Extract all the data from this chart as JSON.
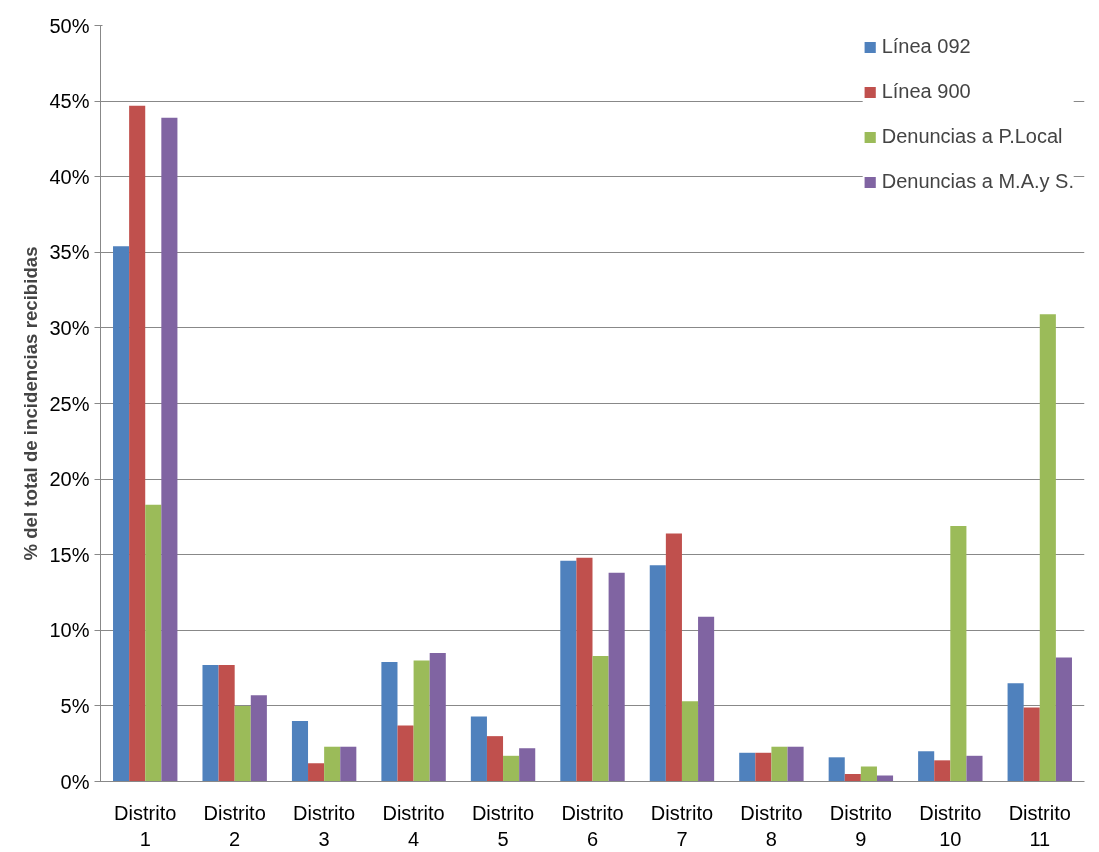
{
  "chart_data": {
    "type": "bar",
    "ylabel": "% del total de incidencias recibidas",
    "categories": [
      "Distrito 1",
      "Distrito 2",
      "Distrito 3",
      "Distrito 4",
      "Distrito 5",
      "Distrito 6",
      "Distrito 7",
      "Distrito 8",
      "Distrito 9",
      "Distrito 10",
      "Distrito 11"
    ],
    "series": [
      {
        "name": "Línea 092",
        "color": "#4f81bd",
        "values": [
          35.4,
          7.7,
          4.0,
          7.9,
          4.3,
          14.6,
          14.3,
          1.9,
          1.6,
          2.0,
          6.5
        ]
      },
      {
        "name": "Línea 900",
        "color": "#c0504d",
        "values": [
          44.7,
          7.7,
          1.2,
          3.7,
          3.0,
          14.8,
          16.4,
          1.9,
          0.5,
          1.4,
          4.9
        ]
      },
      {
        "name": "Denuncias a P.Local",
        "color": "#9bbb59",
        "values": [
          18.3,
          5.0,
          2.3,
          8.0,
          1.7,
          8.3,
          5.3,
          2.3,
          1.0,
          16.9,
          30.9
        ]
      },
      {
        "name": "Denuncias a M.A.y S.",
        "color": "#8064a2",
        "values": [
          43.9,
          5.7,
          2.3,
          8.5,
          2.2,
          13.8,
          10.9,
          2.3,
          0.4,
          1.7,
          8.2
        ]
      }
    ],
    "ylim": [
      0,
      50
    ],
    "yticks": [
      {
        "value": 0,
        "label": "0%"
      },
      {
        "value": 5,
        "label": "5%"
      },
      {
        "value": 10,
        "label": "10%"
      },
      {
        "value": 15,
        "label": "15%"
      },
      {
        "value": 20,
        "label": "20%"
      },
      {
        "value": 25,
        "label": "25%"
      },
      {
        "value": 30,
        "label": "30%"
      },
      {
        "value": 35,
        "label": "35%"
      },
      {
        "value": 40,
        "label": "40%"
      },
      {
        "value": 45,
        "label": "45%"
      },
      {
        "value": 50,
        "label": "50%"
      }
    ],
    "grid": "y",
    "legend": "top right"
  }
}
